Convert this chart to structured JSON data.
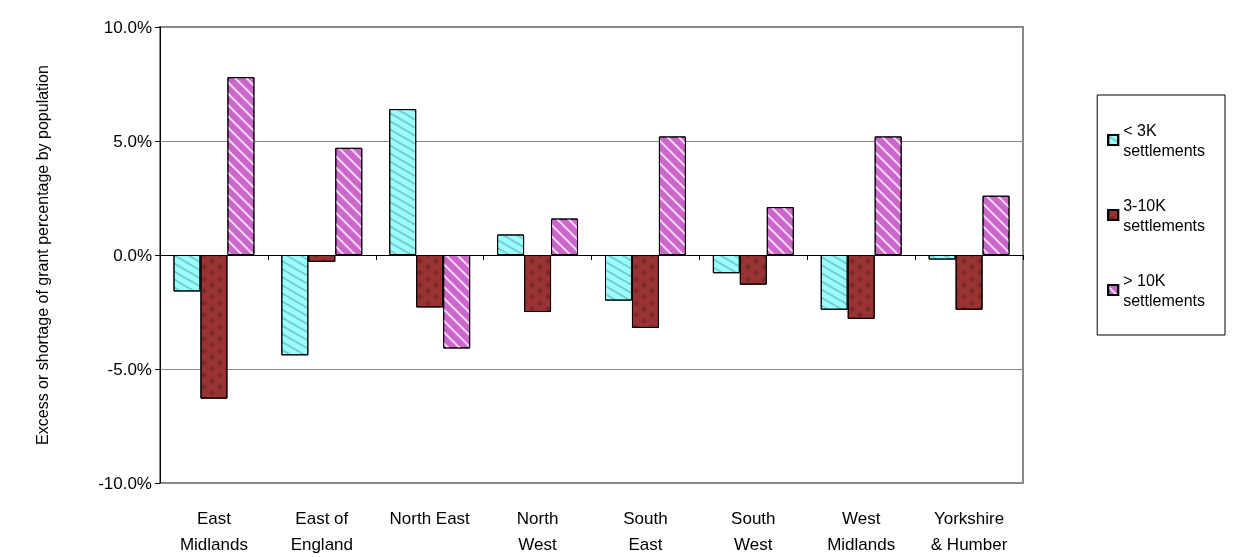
{
  "chart_data": {
    "type": "bar",
    "ylabel": "Excess or shortage of grant percentage by population",
    "categories": [
      "East\nMidlands",
      "East of\nEngland",
      "North East",
      "North\nWest",
      "South\nEast",
      "South\nWest",
      "West\nMidlands",
      "Yorkshire\n& Humber"
    ],
    "series": [
      {
        "name": "< 3K\nsettlements",
        "color": "#99ffff",
        "values": [
          -1.6,
          -4.4,
          6.4,
          0.9,
          -2.0,
          -0.8,
          -2.4,
          -0.2
        ]
      },
      {
        "name": "3-10K\nsettlements",
        "color": "#993333",
        "values": [
          -6.3,
          -0.3,
          -2.3,
          -2.5,
          -3.2,
          -1.3,
          -2.8,
          -2.4
        ]
      },
      {
        "name": "> 10K\nsettlements",
        "color": "#cc66cc",
        "values": [
          7.8,
          4.7,
          -4.1,
          1.6,
          5.2,
          2.1,
          5.2,
          2.6
        ]
      }
    ],
    "ylim": [
      -10,
      10
    ],
    "yticks": [
      {
        "value": -10,
        "label": "-10.0%"
      },
      {
        "value": -5,
        "label": "-5.0%"
      },
      {
        "value": 0,
        "label": "0.0%"
      },
      {
        "value": 5,
        "label": "5.0%"
      },
      {
        "value": 10,
        "label": "10.0%"
      }
    ],
    "grid": "y",
    "legend": "right"
  }
}
